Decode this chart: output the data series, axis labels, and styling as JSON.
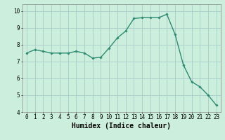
{
  "x": [
    0,
    1,
    2,
    3,
    4,
    5,
    6,
    7,
    8,
    9,
    10,
    11,
    12,
    13,
    14,
    15,
    16,
    17,
    18,
    19,
    20,
    21,
    22,
    23
  ],
  "y": [
    7.5,
    7.7,
    7.6,
    7.5,
    7.5,
    7.5,
    7.6,
    7.5,
    7.2,
    7.25,
    7.8,
    8.4,
    8.8,
    9.55,
    9.6,
    9.6,
    9.6,
    9.8,
    8.6,
    6.8,
    5.8,
    5.5,
    5.0,
    4.4
  ],
  "line_color": "#2e8b72",
  "marker": "D",
  "marker_size": 1.8,
  "line_width": 1.0,
  "bg_color": "#cceedd",
  "grid_color": "#aacccc",
  "xlabel": "Humidex (Indice chaleur)",
  "xlabel_fontsize": 7,
  "ylim": [
    4,
    10.4
  ],
  "xlim": [
    -0.5,
    23.5
  ],
  "yticks": [
    4,
    5,
    6,
    7,
    8,
    9,
    10
  ],
  "xticks": [
    0,
    1,
    2,
    3,
    4,
    5,
    6,
    7,
    8,
    9,
    10,
    11,
    12,
    13,
    14,
    15,
    16,
    17,
    18,
    19,
    20,
    21,
    22,
    23
  ],
  "tick_fontsize": 5.5
}
